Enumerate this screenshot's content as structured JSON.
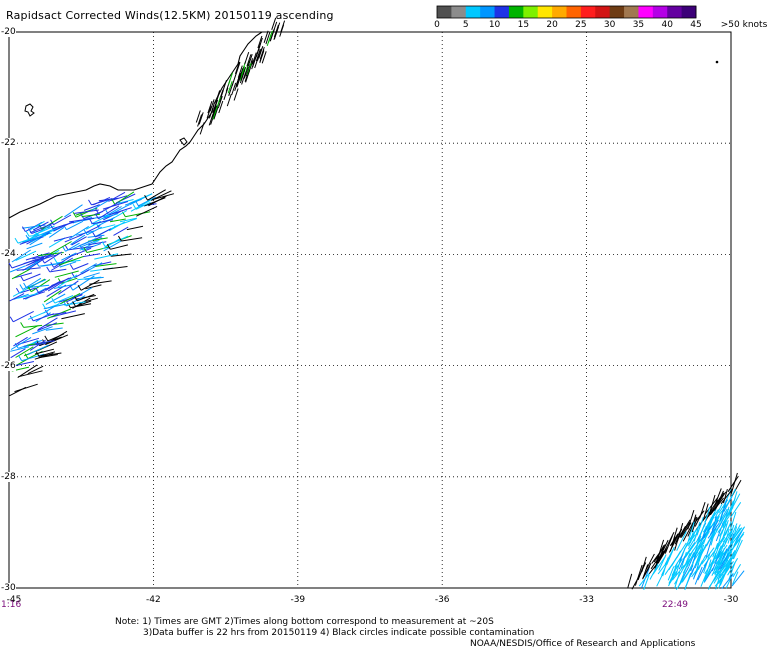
{
  "title": "Rapidsact Corrected Winds(12.5KM) 20150119 ascending",
  "colorbar": {
    "labels": [
      "0",
      "5",
      "10",
      "15",
      "20",
      "25",
      "30",
      "35",
      "40",
      "45",
      ">50 knots"
    ],
    "colors": [
      "#505050",
      "#8c8c8c",
      "#00c8ff",
      "#0096ff",
      "#1e32e6",
      "#00b400",
      "#7df000",
      "#ffe600",
      "#ffaa00",
      "#ff6400",
      "#ff1e1e",
      "#d21414",
      "#6e3c14",
      "#a07850",
      "#ff00ff",
      "#b400e6",
      "#6400a0",
      "#3c0078"
    ]
  },
  "axes": {
    "lat_labels": [
      "-20",
      "-22",
      "-24",
      "-26",
      "-28",
      "-30"
    ],
    "lon_labels": [
      "-45",
      "-42",
      "-39",
      "-36",
      "-33",
      "-30"
    ],
    "lat_range": [
      -30,
      -20
    ],
    "lon_range": [
      -45,
      -30
    ]
  },
  "times": {
    "left": "1:16",
    "right": "22:49"
  },
  "notes": {
    "line1": "Note: 1) Times are GMT 2)Times along bottom correspond to measurement at ~20S",
    "line2": "3)Data buffer is 22 hrs from 20150119 4) Black circles indicate possible contamination",
    "credit": "NOAA/NESDIS/Office of Research and Applications"
  },
  "swath_colors": {
    "low": "#000000",
    "light": "#00c8ff",
    "medium": "#0096ff",
    "strong": "#1e32e6",
    "green": "#00b400"
  }
}
